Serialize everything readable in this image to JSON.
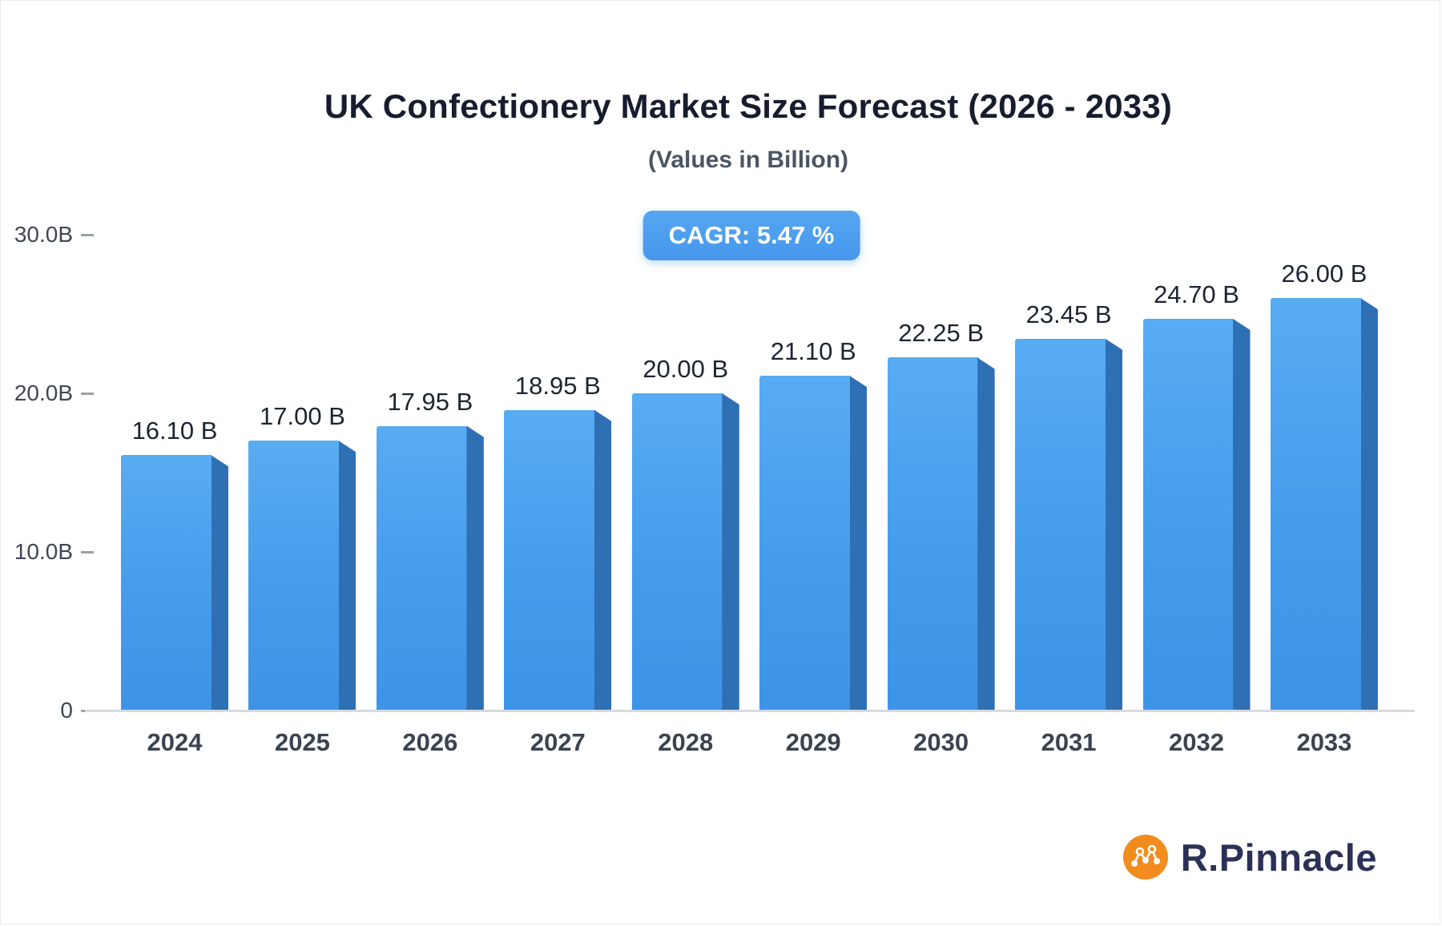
{
  "chart_data": {
    "type": "bar",
    "title": "UK Confectionery Market Size Forecast (2026 - 2033)",
    "subtitle": "(Values in Billion)",
    "cagr_label": "CAGR: 5.47 %",
    "categories": [
      "2024",
      "2025",
      "2026",
      "2027",
      "2028",
      "2029",
      "2030",
      "2031",
      "2032",
      "2033"
    ],
    "values": [
      16.1,
      17.0,
      17.95,
      18.95,
      20.0,
      21.1,
      22.25,
      23.45,
      24.7,
      26.0
    ],
    "value_labels": [
      "16.10 B",
      "17.00 B",
      "17.95 B",
      "18.95 B",
      "20.00 B",
      "21.10 B",
      "22.25 B",
      "23.45 B",
      "24.70 B",
      "26.00 B"
    ],
    "xlabel": "",
    "ylabel": "",
    "ylim": [
      0,
      30
    ],
    "yticks": [
      {
        "value": 0,
        "label": "0"
      },
      {
        "value": 10,
        "label": "10.0B"
      },
      {
        "value": 20,
        "label": "20.0B"
      },
      {
        "value": 30,
        "label": "30.0B"
      }
    ],
    "grid": false,
    "legend": false,
    "bar_color": "#459CEB",
    "bar_side_color": "#2F6FB4"
  },
  "branding": {
    "logo_text": "R.Pinnacle",
    "logo_color": "#F28C1E"
  }
}
